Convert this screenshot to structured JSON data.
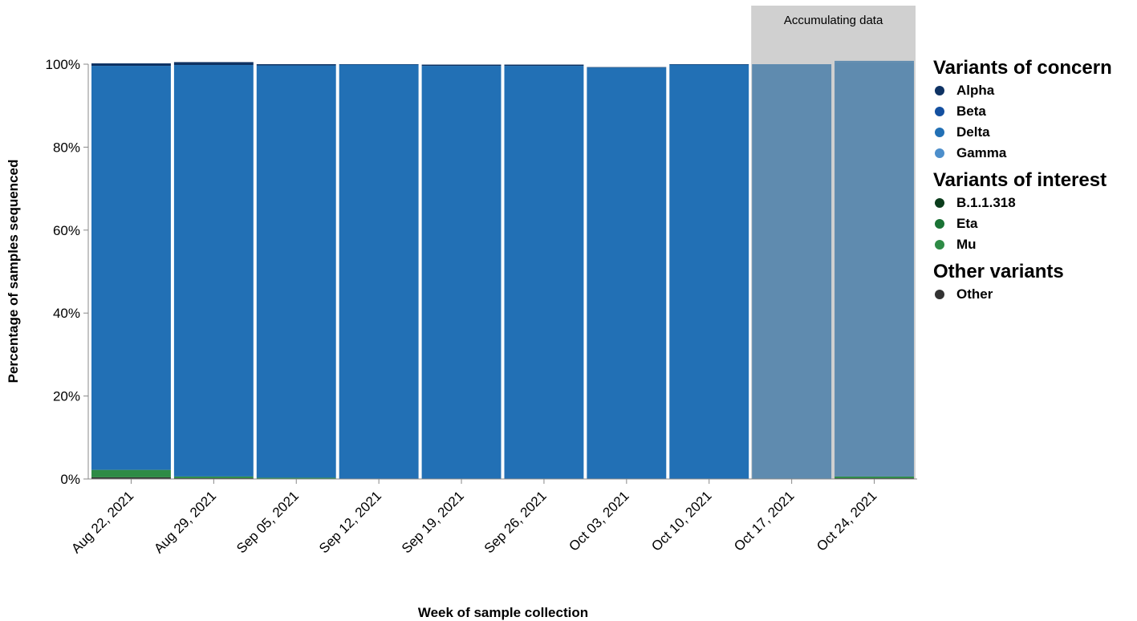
{
  "chart_data": {
    "type": "bar",
    "stacked": true,
    "xlabel": "Week of sample collection",
    "ylabel": "Percentage of samples sequenced",
    "ylim": [
      0,
      100
    ],
    "y_ticks": [
      "0%",
      "20%",
      "40%",
      "60%",
      "80%",
      "100%"
    ],
    "categories": [
      "Aug 22, 2021",
      "Aug 29, 2021",
      "Sep 05, 2021",
      "Sep 12, 2021",
      "Sep 19, 2021",
      "Sep 26, 2021",
      "Oct 03, 2021",
      "Oct 10, 2021",
      "Oct 17, 2021",
      "Oct 24, 2021"
    ],
    "accumulating_annotation": "Accumulating data",
    "accumulating_categories": [
      "Oct 17, 2021",
      "Oct 24, 2021"
    ],
    "accumulating_color": "#5f8baf",
    "series": [
      {
        "name": "Other",
        "group": "Other variants",
        "color": "#333333",
        "values": [
          0.4,
          0.2,
          0,
          0,
          0,
          0,
          0,
          0,
          0,
          0.2
        ]
      },
      {
        "name": "Mu",
        "group": "Variants of interest",
        "color": "#2e8b46",
        "values": [
          1.8,
          0.4,
          0.3,
          0,
          0,
          0,
          0,
          0,
          0,
          0.4
        ]
      },
      {
        "name": "Eta",
        "group": "Variants of interest",
        "color": "#1a7335",
        "values": [
          0,
          0,
          0,
          0,
          0,
          0,
          0,
          0,
          0,
          0
        ]
      },
      {
        "name": "B.1.1.318",
        "group": "Variants of interest",
        "color": "#0b3d1c",
        "values": [
          0,
          0,
          0,
          0,
          0,
          0,
          0,
          0,
          0,
          0
        ]
      },
      {
        "name": "Gamma",
        "group": "Variants of concern",
        "color": "#4d8fcb",
        "values": [
          0,
          0,
          0,
          0,
          0,
          0,
          0,
          0,
          0,
          0
        ]
      },
      {
        "name": "Delta",
        "group": "Variants of concern",
        "color": "#2270b5",
        "values": [
          97.4,
          99.2,
          99.4,
          99.9,
          99.6,
          99.6,
          99.2,
          99.9,
          100,
          99.9
        ]
      },
      {
        "name": "Beta",
        "group": "Variants of concern",
        "color": "#1450a0",
        "values": [
          0,
          0,
          0,
          0,
          0,
          0,
          0,
          0,
          0,
          0
        ]
      },
      {
        "name": "Alpha",
        "group": "Variants of concern",
        "color": "#0e3263",
        "values": [
          0.6,
          0.7,
          0.3,
          0.1,
          0.3,
          0.3,
          0.1,
          0.1,
          0,
          0.3
        ]
      }
    ]
  },
  "legend": {
    "groups": [
      {
        "title": "Variants of concern",
        "items": [
          {
            "label": "Alpha",
            "color": "#0e3263"
          },
          {
            "label": "Beta",
            "color": "#1450a0"
          },
          {
            "label": "Delta",
            "color": "#2270b5"
          },
          {
            "label": "Gamma",
            "color": "#4d8fcb"
          }
        ]
      },
      {
        "title": "Variants of interest",
        "items": [
          {
            "label": "B.1.1.318",
            "color": "#0b3d1c"
          },
          {
            "label": "Eta",
            "color": "#1a7335"
          },
          {
            "label": "Mu",
            "color": "#2e8b46"
          }
        ]
      },
      {
        "title": "Other variants",
        "items": [
          {
            "label": "Other",
            "color": "#333333"
          }
        ]
      }
    ]
  }
}
